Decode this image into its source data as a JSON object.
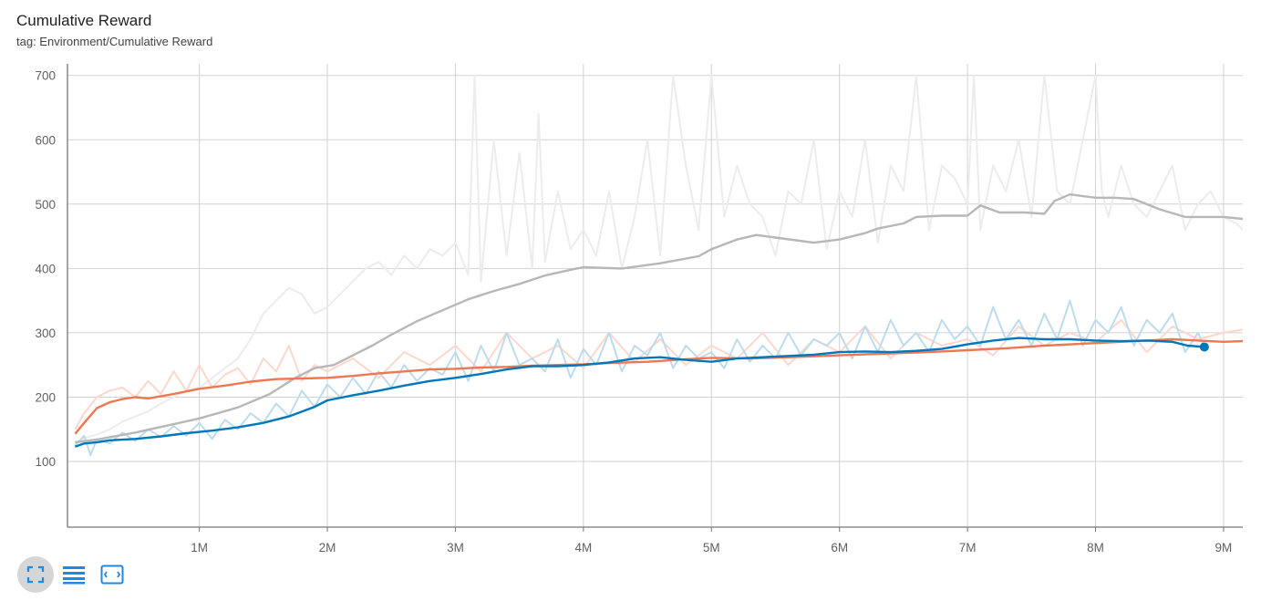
{
  "header": {
    "title": "Cumulative Reward",
    "subtitle": "tag: Environment/Cumulative Reward"
  },
  "toolbar": {
    "buttons": [
      {
        "name": "toggle-expand-button",
        "icon": "expand-icon",
        "active": true
      },
      {
        "name": "toggle-log-scale-button",
        "icon": "lines-icon",
        "active": false
      },
      {
        "name": "fit-domain-button",
        "icon": "fit-to-data-icon",
        "active": false
      }
    ]
  },
  "colors": {
    "blue": "#0077bb",
    "blue_raw": "#bcdcee",
    "orange": "#ee7753",
    "orange_raw": "#fcd7cb",
    "gray": "#b7b7b7",
    "gray_raw": "#ececec",
    "grid": "#d2d2d2",
    "axis": "#777777"
  },
  "chart_data": {
    "type": "line",
    "title": "Cumulative Reward",
    "subtitle": "tag: Environment/Cumulative Reward",
    "xlim": [
      -0.03,
      9.15
    ],
    "ylim": [
      -2,
      718
    ],
    "x_ticks": [
      1,
      2,
      3,
      4,
      5,
      6,
      7,
      8,
      9
    ],
    "x_tick_labels": [
      "1M",
      "2M",
      "3M",
      "4M",
      "5M",
      "6M",
      "7M",
      "8M",
      "9M"
    ],
    "y_ticks": [
      100,
      200,
      300,
      400,
      500,
      600,
      700
    ],
    "y_tick_labels": [
      "100",
      "200",
      "300",
      "400",
      "500",
      "600",
      "700"
    ],
    "grid": true,
    "series": [
      {
        "color_key": "gray",
        "smoothed": {
          "x": [
            0.03,
            0.2,
            0.5,
            0.8,
            1.0,
            1.3,
            1.55,
            1.75,
            1.9,
            2.05,
            2.2,
            2.35,
            2.5,
            2.7,
            2.9,
            3.1,
            3.3,
            3.5,
            3.7,
            3.9,
            4.0,
            4.3,
            4.6,
            4.9,
            5.0,
            5.2,
            5.35,
            5.5,
            5.8,
            6.0,
            6.2,
            6.3,
            6.5,
            6.6,
            6.8,
            7.0,
            7.1,
            7.25,
            7.45,
            7.6,
            7.68,
            7.8,
            8.0,
            8.1,
            8.15,
            8.3,
            8.5,
            8.7,
            9.0,
            9.15
          ],
          "y": [
            130,
            134,
            145,
            158,
            167,
            184,
            205,
            230,
            245,
            250,
            265,
            280,
            297,
            318,
            335,
            352,
            365,
            376,
            389,
            398,
            402,
            400,
            408,
            419,
            430,
            445,
            452,
            448,
            440,
            445,
            455,
            462,
            470,
            480,
            482,
            482,
            498,
            487,
            487,
            485,
            505,
            515,
            510,
            510,
            510,
            508,
            492,
            480,
            480,
            477
          ]
        },
        "raw": {
          "x": [
            0.03,
            0.1,
            0.2,
            0.3,
            0.4,
            0.5,
            0.6,
            0.7,
            0.8,
            0.9,
            1.0,
            1.1,
            1.2,
            1.3,
            1.4,
            1.5,
            1.6,
            1.7,
            1.8,
            1.9,
            2.0,
            2.1,
            2.2,
            2.3,
            2.4,
            2.5,
            2.6,
            2.7,
            2.8,
            2.9,
            3.0,
            3.1,
            3.15,
            3.2,
            3.3,
            3.4,
            3.5,
            3.6,
            3.65,
            3.7,
            3.8,
            3.9,
            4.0,
            4.1,
            4.2,
            4.3,
            4.4,
            4.5,
            4.6,
            4.7,
            4.8,
            4.9,
            5.0,
            5.1,
            5.2,
            5.3,
            5.4,
            5.5,
            5.6,
            5.7,
            5.8,
            5.9,
            6.0,
            6.1,
            6.2,
            6.3,
            6.4,
            6.5,
            6.6,
            6.7,
            6.8,
            6.9,
            7.0,
            7.05,
            7.1,
            7.2,
            7.3,
            7.4,
            7.5,
            7.6,
            7.7,
            7.8,
            7.9,
            8.0,
            8.05,
            8.1,
            8.2,
            8.3,
            8.4,
            8.5,
            8.6,
            8.7,
            8.8,
            8.9,
            9.0,
            9.1,
            9.15
          ],
          "y": [
            128,
            136,
            142,
            150,
            162,
            170,
            178,
            190,
            200,
            210,
            215,
            230,
            245,
            260,
            290,
            330,
            350,
            370,
            360,
            330,
            340,
            360,
            380,
            400,
            410,
            390,
            420,
            400,
            430,
            420,
            440,
            390,
            700,
            380,
            600,
            420,
            580,
            400,
            640,
            410,
            520,
            430,
            460,
            420,
            520,
            400,
            480,
            600,
            420,
            700,
            560,
            460,
            700,
            480,
            560,
            500,
            480,
            420,
            520,
            500,
            600,
            430,
            520,
            480,
            600,
            440,
            560,
            520,
            700,
            460,
            560,
            540,
            500,
            700,
            460,
            560,
            520,
            600,
            480,
            700,
            520,
            500,
            600,
            700,
            520,
            480,
            560,
            500,
            480,
            520,
            560,
            460,
            500,
            520,
            480,
            470,
            460
          ]
        }
      },
      {
        "color_key": "orange",
        "smoothed": {
          "x": [
            0.03,
            0.1,
            0.2,
            0.3,
            0.4,
            0.5,
            0.6,
            0.8,
            1.0,
            1.2,
            1.4,
            1.6,
            1.8,
            2.0,
            2.2,
            2.4,
            2.6,
            2.8,
            3.0,
            3.2,
            3.4,
            3.6,
            3.8,
            4.0,
            4.2,
            4.5,
            4.8,
            5.0,
            5.3,
            5.6,
            6.0,
            6.4,
            6.8,
            7.0,
            7.3,
            7.6,
            8.0,
            8.4,
            8.6,
            8.8,
            9.0,
            9.15
          ],
          "y": [
            143,
            160,
            183,
            192,
            197,
            200,
            198,
            205,
            213,
            218,
            224,
            228,
            229,
            230,
            233,
            237,
            240,
            243,
            244,
            246,
            247,
            249,
            250,
            251,
            253,
            255,
            259,
            261,
            260,
            262,
            265,
            268,
            271,
            273,
            276,
            280,
            284,
            288,
            290,
            288,
            286,
            287
          ]
        },
        "raw": {
          "x": [
            0.03,
            0.1,
            0.2,
            0.3,
            0.4,
            0.5,
            0.6,
            0.7,
            0.8,
            0.9,
            1.0,
            1.1,
            1.2,
            1.3,
            1.4,
            1.5,
            1.6,
            1.7,
            1.8,
            1.9,
            2.0,
            2.2,
            2.4,
            2.6,
            2.8,
            3.0,
            3.2,
            3.4,
            3.6,
            3.8,
            4.0,
            4.2,
            4.4,
            4.6,
            4.8,
            5.0,
            5.2,
            5.4,
            5.6,
            5.8,
            6.0,
            6.2,
            6.4,
            6.6,
            6.8,
            7.0,
            7.2,
            7.4,
            7.6,
            7.8,
            8.0,
            8.2,
            8.4,
            8.6,
            8.8,
            9.0,
            9.15
          ],
          "y": [
            150,
            175,
            200,
            210,
            215,
            200,
            225,
            205,
            240,
            210,
            250,
            215,
            235,
            245,
            220,
            260,
            240,
            280,
            225,
            250,
            240,
            260,
            230,
            270,
            250,
            280,
            240,
            300,
            260,
            280,
            245,
            300,
            255,
            290,
            250,
            280,
            260,
            300,
            250,
            290,
            270,
            310,
            260,
            300,
            280,
            290,
            265,
            310,
            280,
            300,
            285,
            320,
            270,
            310,
            290,
            300,
            305
          ]
        }
      },
      {
        "color_key": "blue",
        "smoothed": {
          "x": [
            0.03,
            0.1,
            0.2,
            0.3,
            0.5,
            0.7,
            0.9,
            1.1,
            1.3,
            1.5,
            1.7,
            1.9,
            2.0,
            2.2,
            2.4,
            2.6,
            2.8,
            3.0,
            3.2,
            3.4,
            3.6,
            3.8,
            4.0,
            4.2,
            4.4,
            4.6,
            4.8,
            5.0,
            5.2,
            5.4,
            5.6,
            5.8,
            6.0,
            6.2,
            6.4,
            6.6,
            6.8,
            7.0,
            7.2,
            7.4,
            7.6,
            7.8,
            8.0,
            8.2,
            8.4,
            8.6,
            8.72,
            8.85
          ],
          "y": [
            123,
            128,
            130,
            133,
            135,
            139,
            144,
            148,
            153,
            160,
            170,
            185,
            195,
            203,
            210,
            218,
            225,
            230,
            236,
            243,
            248,
            248,
            250,
            254,
            260,
            262,
            258,
            255,
            260,
            262,
            264,
            266,
            270,
            271,
            270,
            272,
            275,
            282,
            288,
            292,
            290,
            290,
            288,
            287,
            288,
            286,
            280,
            278
          ]
        },
        "raw": {
          "x": [
            0.03,
            0.1,
            0.15,
            0.2,
            0.3,
            0.4,
            0.5,
            0.6,
            0.7,
            0.8,
            0.9,
            1.0,
            1.1,
            1.2,
            1.3,
            1.4,
            1.5,
            1.6,
            1.7,
            1.8,
            1.9,
            2.0,
            2.1,
            2.2,
            2.3,
            2.4,
            2.5,
            2.6,
            2.7,
            2.8,
            2.9,
            3.0,
            3.1,
            3.2,
            3.3,
            3.4,
            3.5,
            3.6,
            3.7,
            3.8,
            3.9,
            4.0,
            4.1,
            4.2,
            4.3,
            4.4,
            4.5,
            4.6,
            4.7,
            4.8,
            4.9,
            5.0,
            5.1,
            5.2,
            5.3,
            5.4,
            5.5,
            5.6,
            5.7,
            5.8,
            5.9,
            6.0,
            6.1,
            6.2,
            6.3,
            6.4,
            6.5,
            6.6,
            6.7,
            6.8,
            6.9,
            7.0,
            7.1,
            7.2,
            7.3,
            7.4,
            7.5,
            7.6,
            7.7,
            7.8,
            7.9,
            8.0,
            8.1,
            8.2,
            8.3,
            8.4,
            8.5,
            8.6,
            8.7,
            8.8,
            8.85
          ],
          "y": [
            125,
            140,
            110,
            135,
            128,
            145,
            132,
            150,
            138,
            155,
            140,
            160,
            135,
            165,
            150,
            175,
            160,
            190,
            170,
            210,
            185,
            220,
            200,
            230,
            205,
            240,
            215,
            250,
            225,
            245,
            235,
            270,
            225,
            280,
            240,
            300,
            250,
            260,
            240,
            290,
            230,
            275,
            250,
            300,
            240,
            280,
            265,
            300,
            245,
            280,
            260,
            270,
            245,
            290,
            255,
            280,
            260,
            300,
            265,
            290,
            280,
            300,
            260,
            310,
            270,
            320,
            280,
            300,
            270,
            320,
            290,
            310,
            280,
            340,
            290,
            320,
            280,
            330,
            290,
            350,
            280,
            320,
            300,
            340,
            280,
            320,
            300,
            330,
            270,
            300,
            278
          ]
        }
      }
    ]
  }
}
